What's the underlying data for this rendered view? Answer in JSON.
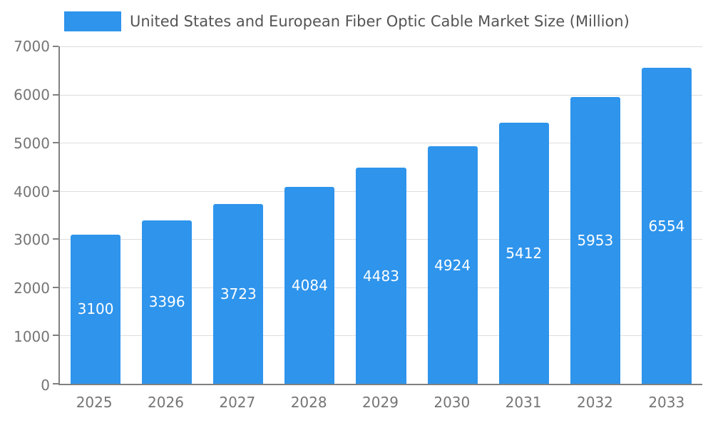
{
  "chart_data": {
    "type": "bar",
    "title": "United States and European Fiber Optic Cable Market Size (Million)",
    "categories": [
      "2025",
      "2026",
      "2027",
      "2028",
      "2029",
      "2030",
      "2031",
      "2032",
      "2033"
    ],
    "values": [
      3100,
      3396,
      3723,
      4084,
      4483,
      4924,
      5412,
      5953,
      6554
    ],
    "series": [
      {
        "name": "United States and European Fiber Optic Cable Market Size (Million)",
        "values": [
          3100,
          3396,
          3723,
          4084,
          4483,
          4924,
          5412,
          5953,
          6554
        ]
      }
    ],
    "xlabel": "",
    "ylabel": "",
    "ylim": [
      0,
      7000
    ],
    "yticks": [
      0,
      1000,
      2000,
      3000,
      4000,
      5000,
      6000,
      7000
    ],
    "grid": true,
    "legend_position": "top-left",
    "bar_labels_visible": true
  },
  "colors": {
    "bar": "#2E94EC",
    "bar_label": "#FFFFFF",
    "grid": "#DDDDDD",
    "axis": "#808080",
    "tick_text": "#757575",
    "title_text": "#545454",
    "background": "#FFFFFF"
  }
}
